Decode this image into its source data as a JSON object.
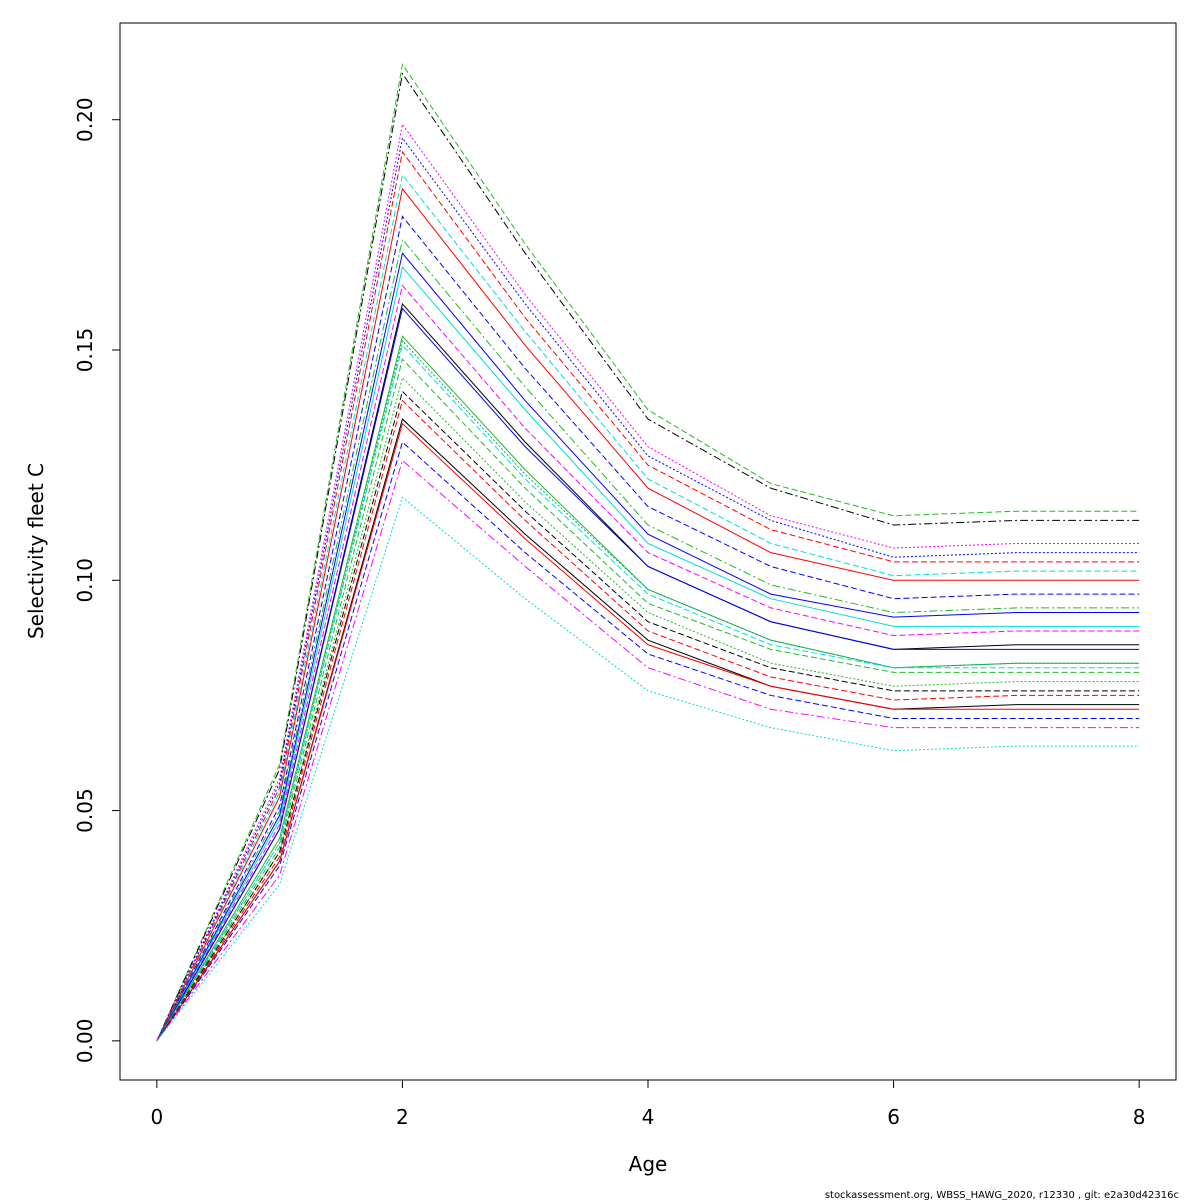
{
  "chart_data": {
    "type": "line",
    "xlabel": "Age",
    "ylabel": "Selectivity fleet C",
    "xlim": [
      -0.3,
      8.3
    ],
    "ylim": [
      -0.0085,
      0.221
    ],
    "x_ticks": [
      "0",
      "2",
      "4",
      "6",
      "8"
    ],
    "y_ticks": [
      "0.00",
      "0.05",
      "0.10",
      "0.15",
      "0.20"
    ],
    "grid": false,
    "x": [
      0,
      1,
      2,
      3,
      4,
      5,
      6,
      7,
      8
    ],
    "footer": "stockassessment.org, WBSS_HAWG_2020, r12330 , git: e2a30d42316c",
    "series": [
      {
        "color": "#22bb22",
        "dash": "6,3",
        "values": [
          0,
          0.06,
          0.212,
          0.173,
          0.137,
          0.121,
          0.114,
          0.115,
          0.115
        ]
      },
      {
        "color": "#000000",
        "dash": "8,3,2,3",
        "values": [
          0,
          0.059,
          0.21,
          0.171,
          0.135,
          0.12,
          0.112,
          0.113,
          0.113
        ]
      },
      {
        "color": "#ff00ff",
        "dash": "2,2",
        "values": [
          0,
          0.057,
          0.199,
          0.162,
          0.129,
          0.114,
          0.107,
          0.108,
          0.108
        ]
      },
      {
        "color": "#0000ff",
        "dash": "2,2",
        "values": [
          0,
          0.056,
          0.196,
          0.16,
          0.127,
          0.113,
          0.105,
          0.106,
          0.106
        ]
      },
      {
        "color": "#ff0000",
        "dash": "6,3",
        "values": [
          0,
          0.055,
          0.193,
          0.157,
          0.125,
          0.111,
          0.104,
          0.104,
          0.104
        ]
      },
      {
        "color": "#00dddd",
        "dash": "6,3",
        "values": [
          0,
          0.054,
          0.188,
          0.154,
          0.122,
          0.108,
          0.101,
          0.102,
          0.102
        ]
      },
      {
        "color": "#ff0000",
        "dash": "",
        "values": [
          0,
          0.053,
          0.185,
          0.151,
          0.12,
          0.106,
          0.1,
          0.1,
          0.1
        ]
      },
      {
        "color": "#0000ff",
        "dash": "6,3",
        "values": [
          0,
          0.051,
          0.179,
          0.146,
          0.116,
          0.103,
          0.096,
          0.097,
          0.097
        ]
      },
      {
        "color": "#22bb22",
        "dash": "8,3,2,3",
        "values": [
          0,
          0.05,
          0.174,
          0.142,
          0.112,
          0.099,
          0.093,
          0.094,
          0.094
        ]
      },
      {
        "color": "#0000ff",
        "dash": "",
        "values": [
          0,
          0.049,
          0.171,
          0.139,
          0.11,
          0.097,
          0.092,
          0.093,
          0.093
        ]
      },
      {
        "color": "#00dddd",
        "dash": "",
        "values": [
          0,
          0.048,
          0.168,
          0.137,
          0.108,
          0.096,
          0.09,
          0.09,
          0.09
        ]
      },
      {
        "color": "#ff00ff",
        "dash": "6,3",
        "values": [
          0,
          0.047,
          0.164,
          0.133,
          0.106,
          0.094,
          0.088,
          0.089,
          0.089
        ]
      },
      {
        "color": "#000000",
        "dash": "",
        "values": [
          0,
          0.046,
          0.16,
          0.13,
          0.103,
          0.091,
          0.085,
          0.086,
          0.086
        ]
      },
      {
        "color": "#0000ff",
        "dash": "",
        "values": [
          0,
          0.046,
          0.159,
          0.129,
          0.103,
          0.091,
          0.085,
          0.085,
          0.085
        ]
      },
      {
        "color": "#22bb22",
        "dash": "",
        "values": [
          0,
          0.044,
          0.153,
          0.124,
          0.098,
          0.087,
          0.081,
          0.082,
          0.082
        ]
      },
      {
        "color": "#00aa88",
        "dash": "2,2",
        "values": [
          0,
          0.043,
          0.152,
          0.123,
          0.098,
          0.087,
          0.081,
          0.082,
          0.082
        ]
      },
      {
        "color": "#00dddd",
        "dash": "6,3",
        "values": [
          0,
          0.043,
          0.151,
          0.122,
          0.097,
          0.086,
          0.081,
          0.081,
          0.081
        ]
      },
      {
        "color": "#22bb22",
        "dash": "6,3",
        "values": [
          0,
          0.042,
          0.148,
          0.12,
          0.095,
          0.085,
          0.08,
          0.08,
          0.08
        ]
      },
      {
        "color": "#22bb22",
        "dash": "2,2",
        "values": [
          0,
          0.041,
          0.144,
          0.117,
          0.093,
          0.082,
          0.077,
          0.078,
          0.078
        ]
      },
      {
        "color": "#000000",
        "dash": "6,3",
        "values": [
          0,
          0.041,
          0.141,
          0.115,
          0.091,
          0.081,
          0.076,
          0.076,
          0.076
        ]
      },
      {
        "color": "#ff0000",
        "dash": "6,3",
        "values": [
          0,
          0.04,
          0.139,
          0.113,
          0.089,
          0.079,
          0.074,
          0.075,
          0.075
        ]
      },
      {
        "color": "#000000",
        "dash": "",
        "values": [
          0,
          0.039,
          0.135,
          0.11,
          0.087,
          0.077,
          0.072,
          0.073,
          0.073
        ]
      },
      {
        "color": "#ff0000",
        "dash": "",
        "values": [
          0,
          0.039,
          0.134,
          0.109,
          0.086,
          0.077,
          0.072,
          0.072,
          0.072
        ]
      },
      {
        "color": "#0000ff",
        "dash": "6,3",
        "values": [
          0,
          0.038,
          0.13,
          0.106,
          0.084,
          0.075,
          0.07,
          0.07,
          0.07
        ]
      },
      {
        "color": "#ff00ff",
        "dash": "8,3,2,3",
        "values": [
          0,
          0.036,
          0.126,
          0.103,
          0.081,
          0.072,
          0.068,
          0.068,
          0.068
        ]
      },
      {
        "color": "#00dddd",
        "dash": "2,2",
        "values": [
          0,
          0.034,
          0.118,
          0.096,
          0.076,
          0.068,
          0.063,
          0.064,
          0.064
        ]
      }
    ]
  }
}
